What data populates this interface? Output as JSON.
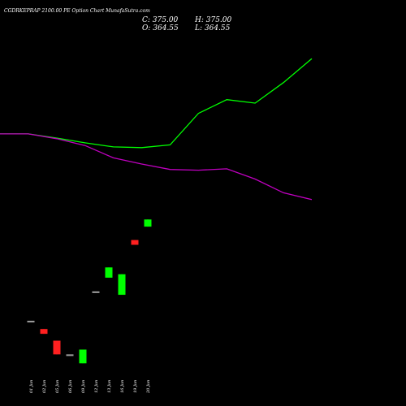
{
  "header": {
    "title": "CGDRKEPRAP 2100.00  PE Option  Chart MunafaSutra.com",
    "close_label": "C: 375.00",
    "high_label": "H: 375.00",
    "open_label": "O: 364.55",
    "low_label": "L: 364.55"
  },
  "chart_data": {
    "type": "candlestick",
    "x_tick_labels": [
      "01 Jun",
      "02 Jun",
      "05 Jun",
      "06 Jun",
      "09 Jun",
      "12 Jun",
      "13 Jun",
      "16 Jun",
      "19 Jun",
      "20 Jun"
    ],
    "candles": [
      {
        "date": "01 Jun",
        "open": 227,
        "close": 227,
        "high": 227,
        "low": 227,
        "color": "#a0a0a0"
      },
      {
        "date": "02 Jun",
        "open": 215,
        "close": 208,
        "high": 215,
        "low": 208,
        "color": "#ff2020"
      },
      {
        "date": "05 Jun",
        "open": 198,
        "close": 178,
        "high": 198,
        "low": 178,
        "color": "#ff2020"
      },
      {
        "date": "06 Jun",
        "open": 178,
        "close": 178,
        "high": 178,
        "low": 178,
        "color": "#a0a0a0"
      },
      {
        "date": "09 Jun",
        "open": 165,
        "close": 185,
        "high": 185,
        "low": 165,
        "color": "#00ff00"
      },
      {
        "date": "12 Jun",
        "open": 270,
        "close": 270,
        "high": 270,
        "low": 270,
        "color": "#a0a0a0"
      },
      {
        "date": "13 Jun",
        "open": 290,
        "close": 305,
        "high": 305,
        "low": 290,
        "color": "#00ff00"
      },
      {
        "date": "16 Jun",
        "open": 265,
        "close": 295,
        "high": 295,
        "low": 265,
        "color": "#00ff00"
      },
      {
        "date": "19 Jun",
        "open": 345,
        "close": 338,
        "high": 345,
        "low": 338,
        "color": "#ff2020"
      },
      {
        "date": "20 Jun",
        "open": 364.55,
        "close": 375,
        "high": 375,
        "low": 364.55,
        "color": "#00ff00"
      }
    ],
    "series": [
      {
        "color": "#00ff00",
        "values": [
          500,
          500,
          494,
          487,
          481,
          480,
          484,
          530,
          550,
          545,
          575,
          610
        ]
      },
      {
        "color": "#c000c0",
        "values": [
          500,
          500,
          493,
          483,
          465,
          456,
          448,
          447,
          449,
          434,
          414,
          404
        ]
      }
    ],
    "ylim": [
      150,
      660
    ],
    "colors": {
      "background": "#000000",
      "text": "#ffffff",
      "bull": "#00ff00",
      "bear": "#ff2020",
      "doji": "#a0a0a0"
    },
    "grid": false
  }
}
